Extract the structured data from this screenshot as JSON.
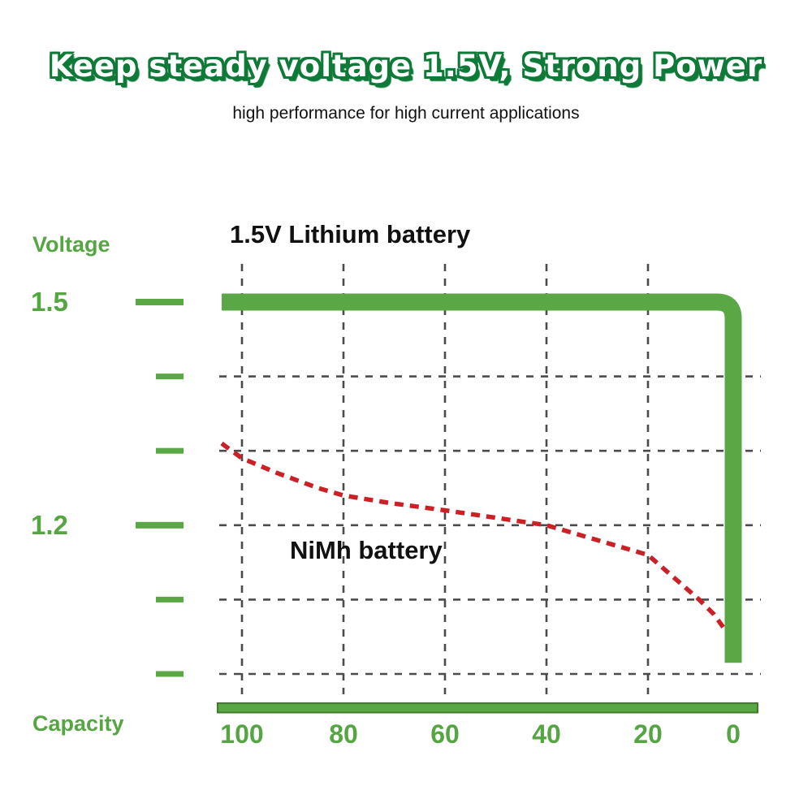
{
  "header": {
    "title": "Keep steady voltage 1.5V, Strong Power",
    "subtitle": "high performance for high current applications"
  },
  "colors": {
    "line_green": "#5aa746",
    "axis_border_green": "#3e7b2b",
    "text_green": "#55a643",
    "title_outline_green": "#0e7a38",
    "nimh_red": "#cb2026",
    "grid_gray": "#4b4b4b",
    "text_black": "#111111"
  },
  "chart_data": {
    "type": "line",
    "xlabel": "Capacity",
    "ylabel": "Voltage",
    "x_ticks": [
      100,
      80,
      60,
      40,
      20,
      0
    ],
    "y_ticks": [
      1.5,
      1.4,
      1.3,
      1.2,
      1.1,
      1.0
    ],
    "y_ticks_labeled": [
      1.5,
      1.2
    ],
    "x_axis_reversed": true,
    "grid": "dashed",
    "xlim": [
      104,
      0
    ],
    "ylim": [
      1.0,
      1.5
    ],
    "series": [
      {
        "name": "1.5V Lithium battery",
        "color": "#5aa746",
        "style": "solid",
        "points": [
          [
            104,
            1.5
          ],
          [
            0,
            1.5
          ],
          [
            0,
            1.015
          ]
        ]
      },
      {
        "name": "NiMh battery",
        "color": "#cb2026",
        "style": "dashed",
        "points": [
          [
            104,
            1.31
          ],
          [
            100,
            1.29
          ],
          [
            93,
            1.27
          ],
          [
            85,
            1.25
          ],
          [
            80,
            1.24
          ],
          [
            71,
            1.23
          ],
          [
            60,
            1.22
          ],
          [
            50,
            1.21
          ],
          [
            40,
            1.2
          ],
          [
            30,
            1.18
          ],
          [
            20,
            1.16
          ],
          [
            14,
            1.13
          ],
          [
            8,
            1.1
          ],
          [
            4.5,
            1.08
          ],
          [
            2,
            1.06
          ]
        ]
      }
    ],
    "annotations": [
      {
        "text": "1.5V Lithium battery"
      },
      {
        "text": "NiMh battery"
      }
    ]
  }
}
